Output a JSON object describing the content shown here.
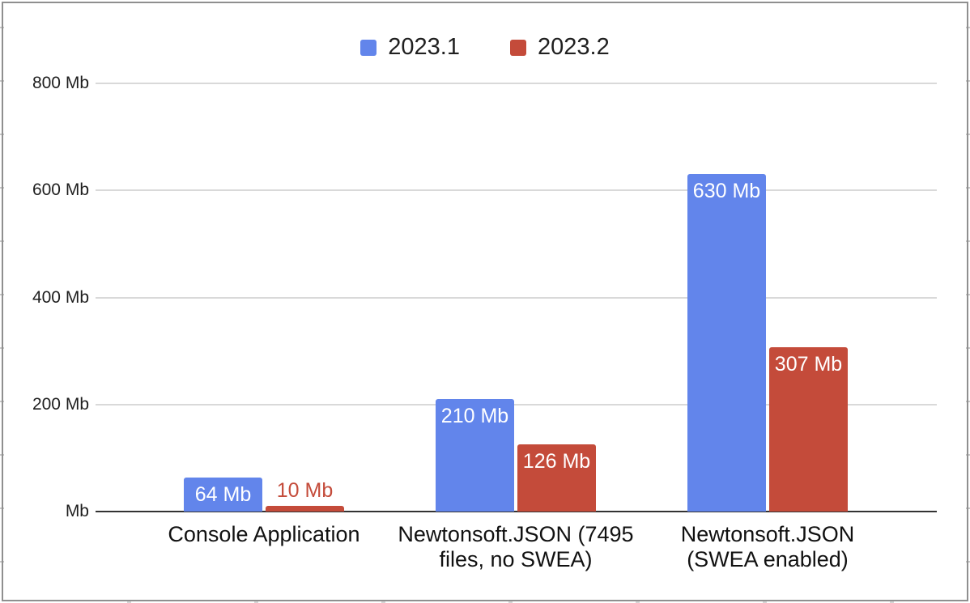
{
  "chart_data": {
    "type": "bar",
    "title": "",
    "categories": [
      "Console Application",
      "Newtonsoft.JSON (7495\nfiles, no SWEA)",
      "Newtonsoft.JSON\n(SWEA enabled)"
    ],
    "series": [
      {
        "name": "2023.1",
        "color": "#6285EB",
        "values": [
          64,
          210,
          630
        ],
        "value_labels": [
          "64 Mb",
          "210 Mb",
          "630 Mb"
        ]
      },
      {
        "name": "2023.2",
        "color": "#C44B3A",
        "values": [
          10,
          126,
          307
        ],
        "value_labels": [
          "10 Mb",
          "126 Mb",
          "307 Mb"
        ]
      }
    ],
    "unit": "Mb",
    "ylim": [
      0,
      800
    ],
    "y_ticks": [
      {
        "value": 0,
        "label": "Mb"
      },
      {
        "value": 200,
        "label": "200 Mb"
      },
      {
        "value": 400,
        "label": "400 Mb"
      },
      {
        "value": 600,
        "label": "600 Mb"
      },
      {
        "value": 800,
        "label": "800 Mb"
      }
    ],
    "legend_position": "top",
    "grid": true
  },
  "colors": {
    "series1": "#6285EB",
    "series2": "#C44B3A",
    "gridline": "#D9D9D9",
    "axis": "#333333",
    "bar_label_inside": "#FFFFFF",
    "frame_border": "#8F8F8F",
    "background": "#FFFFFF"
  }
}
